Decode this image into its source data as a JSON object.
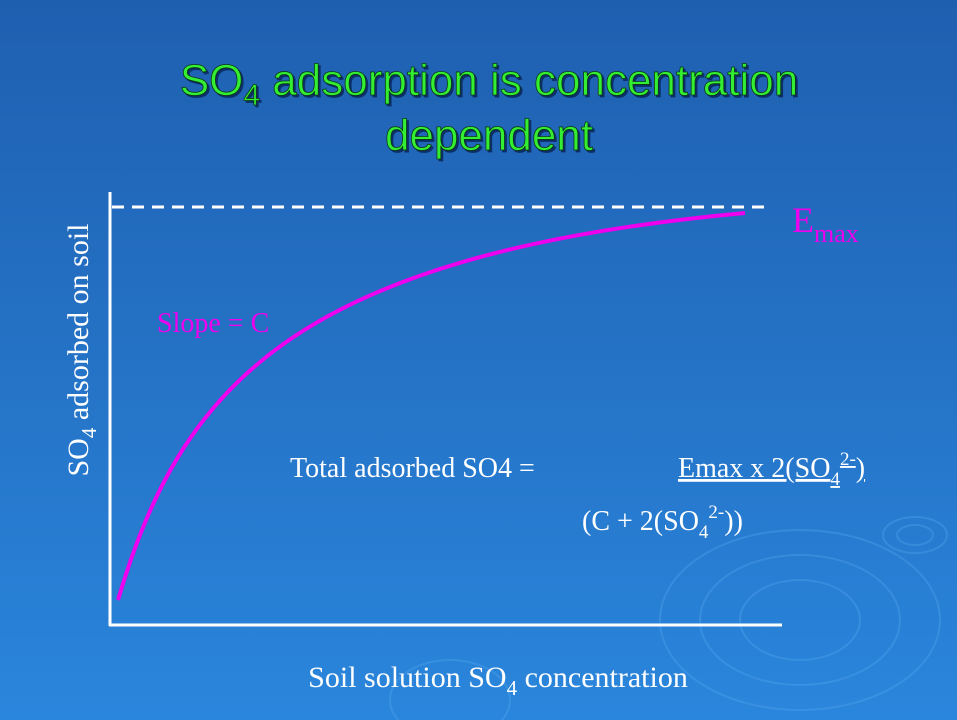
{
  "title": {
    "line1": [
      "SO",
      "4",
      " adsorption is concentration"
    ],
    "line2": "dependent"
  },
  "y_axis_label": [
    "SO",
    "4",
    " adsorbed on soil"
  ],
  "x_axis_label": [
    "Soil solution SO",
    "4",
    " concentration"
  ],
  "emax_label": [
    "E",
    "max"
  ],
  "slope_label": "Slope = C",
  "equation": {
    "lhs": "Total adsorbed SO4 =",
    "numerator": [
      "Emax x 2(SO",
      "4",
      "2-",
      ")"
    ],
    "denominator": [
      "(C + 2(SO",
      "4",
      "2-",
      "))"
    ]
  }
}
